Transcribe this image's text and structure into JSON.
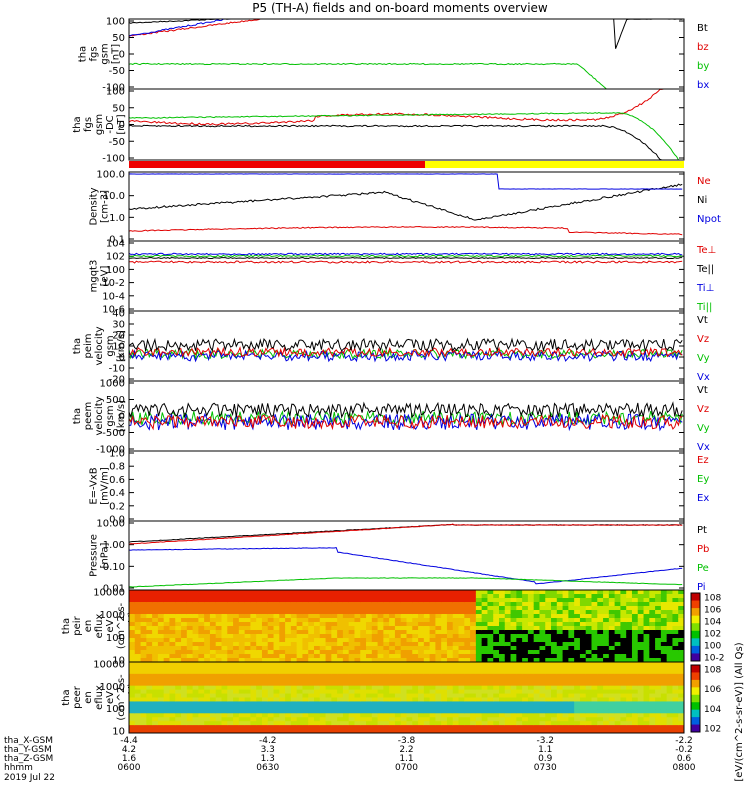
{
  "chart_data": {
    "type": "line",
    "title": "P5 (TH-A) fields and on-board moments overview",
    "panels": [
      {
        "id": "fgs",
        "ylabel": [
          "tha",
          "fgs",
          "gsm",
          "[nT]"
        ],
        "yticks": [
          "100",
          "50",
          "0",
          "-50",
          "-100"
        ],
        "ylim": [
          -100,
          100
        ],
        "legend": [
          {
            "name": "Bt",
            "color": "#000000"
          },
          {
            "name": "bz",
            "color": "#e00000"
          },
          {
            "name": "by",
            "color": "#00c000"
          },
          {
            "name": "bx",
            "color": "#0000e0"
          }
        ]
      },
      {
        "id": "fgs_dc",
        "ylabel": [
          "tha",
          "fgs",
          "gsm",
          "-DC",
          "[nT]"
        ],
        "yticks": [
          "100",
          "50",
          "0",
          "-50",
          "-100"
        ],
        "ylim": [
          -120,
          120
        ],
        "legend": []
      },
      {
        "id": "density",
        "ylabel": [
          "Density",
          "[cm-3]"
        ],
        "yticks": [
          "100.0",
          "10.0",
          "1.0",
          "0.1"
        ],
        "ylim": [
          0.05,
          200
        ],
        "legend": [
          {
            "name": "Ne",
            "color": "#e00000"
          },
          {
            "name": "Ni",
            "color": "#000000"
          },
          {
            "name": "Npot",
            "color": "#0000e0"
          }
        ]
      },
      {
        "id": "temp",
        "ylabel": [
          "mgqt3",
          "[eV]"
        ],
        "yticks": [
          "10^4",
          "10^2",
          "10^0",
          "10^-2",
          "10^-4",
          "10^-6"
        ],
        "ylim": [
          1e-06,
          10000.0
        ],
        "legend": [
          {
            "name": "Te⊥",
            "color": "#e00000"
          },
          {
            "name": "Te||",
            "color": "#000000"
          },
          {
            "name": "Ti⊥",
            "color": "#0000e0"
          },
          {
            "name": "Ti||",
            "color": "#00c000"
          }
        ]
      },
      {
        "id": "vi",
        "ylabel": [
          "tha",
          "peim",
          "velocity",
          "gsm",
          "[km/s]"
        ],
        "yticks": [
          "40",
          "30",
          "20",
          "10",
          "0",
          "-10",
          "-20"
        ],
        "ylim": [
          -20,
          40
        ],
        "legend": [
          {
            "name": "Vt",
            "color": "#000000"
          },
          {
            "name": "Vz",
            "color": "#e00000"
          },
          {
            "name": "Vy",
            "color": "#00c000"
          },
          {
            "name": "Vx",
            "color": "#0000e0"
          }
        ]
      },
      {
        "id": "ve",
        "ylabel": [
          "tha",
          "peem",
          "velocity",
          "gsm",
          "[km/s]"
        ],
        "yticks": [
          "1000",
          "500",
          "0",
          "-500",
          "-1000"
        ],
        "ylim": [
          -1000,
          1000
        ],
        "legend": [
          {
            "name": "Vt",
            "color": "#000000"
          },
          {
            "name": "Vz",
            "color": "#e00000"
          },
          {
            "name": "Vy",
            "color": "#00c000"
          },
          {
            "name": "Vx",
            "color": "#0000e0"
          }
        ]
      },
      {
        "id": "efield",
        "ylabel": [
          "E=-VxB",
          "[mV/m]"
        ],
        "yticks": [
          "1.0",
          "0.8",
          "0.6",
          "0.4",
          "0.2",
          "0.0"
        ],
        "ylim": [
          0,
          1
        ],
        "legend": [
          {
            "name": "Ez",
            "color": "#e00000"
          },
          {
            "name": "Ey",
            "color": "#00c000"
          },
          {
            "name": "Ex",
            "color": "#0000e0"
          }
        ]
      },
      {
        "id": "pressure",
        "ylabel": [
          "Pressure",
          "[nPa]"
        ],
        "yticks": [
          "10.00",
          "1.00",
          "0.10",
          "0.01"
        ],
        "ylim": [
          0.005,
          30
        ],
        "legend": [
          {
            "name": "Pt",
            "color": "#000000"
          },
          {
            "name": "Pb",
            "color": "#e00000"
          },
          {
            "name": "Pe",
            "color": "#00c000"
          },
          {
            "name": "Pi",
            "color": "#0000e0"
          }
        ]
      },
      {
        "id": "ion_spec",
        "ylabel": [
          "tha",
          "peir",
          "en",
          "eflux",
          "eV",
          "(cm^2-s-",
          "sr-eV)"
        ],
        "yticks": [
          "10000",
          "1000",
          "100",
          "10"
        ],
        "ylim": [
          5,
          30000
        ],
        "legend": []
      },
      {
        "id": "elec_spec",
        "ylabel": [
          "tha",
          "peer",
          "en",
          "eflux",
          "eV",
          "(cm^2-s-",
          "sr-eV)"
        ],
        "yticks": [
          "10000",
          "1000",
          "100",
          "10"
        ],
        "ylim": [
          5,
          30000
        ],
        "legend": []
      }
    ],
    "colorbar": {
      "label": "[eV/(cm^2-s-sr-eV)] (All Qs)",
      "ion_ticks": [
        "10^8",
        "10^6",
        "10^4",
        "10^2",
        "10^0",
        "10^-2"
      ],
      "elec_ticks": [
        "10^8",
        "10^6",
        "10^4",
        "10^2"
      ]
    },
    "xaxis": {
      "rows": [
        {
          "label": "tha_X-GSM",
          "values": [
            "-4.4",
            "-4.2",
            "-3.8",
            "-3.2",
            "-2.2"
          ]
        },
        {
          "label": "tha_Y-GSM",
          "values": [
            "4.2",
            "3.3",
            "2.2",
            "1.1",
            "-0.2"
          ]
        },
        {
          "label": "tha_Z-GSM",
          "values": [
            "1.6",
            "1.3",
            "1.1",
            "0.9",
            "0.6"
          ]
        },
        {
          "label": "hhmm",
          "values": [
            "0600",
            "0630",
            "0700",
            "0730",
            "0800"
          ]
        }
      ],
      "date": "2019 Jul 22",
      "range_minutes": [
        0,
        120
      ]
    },
    "mode_bar": {
      "segments": [
        {
          "color": "#ee0000",
          "start_min": 0,
          "end_min": 64
        },
        {
          "color": "#ffff00",
          "start_min": 64,
          "end_min": 120
        }
      ]
    }
  }
}
